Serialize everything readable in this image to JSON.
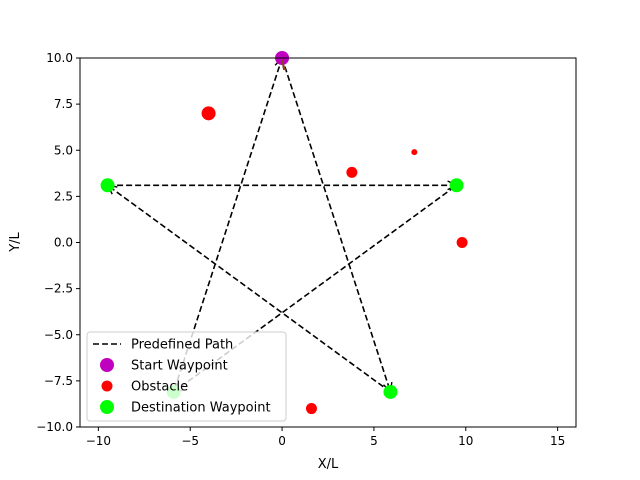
{
  "chart_data": {
    "type": "scatter",
    "title": "",
    "xlabel": "X/L",
    "ylabel": "Y/L",
    "xlim": [
      -11,
      16
    ],
    "ylim": [
      -10,
      10
    ],
    "xticks": [
      -10,
      -5,
      0,
      5,
      10,
      15
    ],
    "yticks": [
      -10.0,
      -7.5,
      -5.0,
      -2.5,
      0.0,
      2.5,
      5.0,
      7.5,
      10.0
    ],
    "xtick_labels": [
      "−10",
      "−5",
      "0",
      "5",
      "10",
      "15"
    ],
    "ytick_labels": [
      "−10.0",
      "−7.5",
      "−5.0",
      "−2.5",
      "0.0",
      "2.5",
      "5.0",
      "7.5",
      "10.0"
    ],
    "grid": false,
    "legend_position": "lower-left",
    "series": [
      {
        "name": "Predefined Path",
        "kind": "line",
        "style": "dashed",
        "color": "#000000",
        "x": [
          0,
          5.9,
          -9.5,
          9.5,
          -5.9,
          0
        ],
        "y": [
          10,
          -8.1,
          3.1,
          3.1,
          -8.1,
          10
        ]
      },
      {
        "name": "Start Waypoint",
        "kind": "points",
        "color": "#bf00bf",
        "x": [
          0
        ],
        "y": [
          10
        ]
      },
      {
        "name": "Obstacle",
        "kind": "points",
        "color": "#ff0000",
        "points": [
          {
            "x": -4.0,
            "y": 7.0,
            "size": "large"
          },
          {
            "x": 3.8,
            "y": 3.8,
            "size": "medium"
          },
          {
            "x": 7.2,
            "y": 4.9,
            "size": "small"
          },
          {
            "x": 9.8,
            "y": 0.0,
            "size": "medium"
          },
          {
            "x": 1.6,
            "y": -9.0,
            "size": "medium"
          }
        ]
      },
      {
        "name": "Destination Waypoint",
        "kind": "points",
        "color": "#00ff00",
        "x": [
          -9.5,
          9.5,
          5.9,
          -5.9
        ],
        "y": [
          3.1,
          3.1,
          -8.1,
          -8.1
        ]
      }
    ]
  }
}
